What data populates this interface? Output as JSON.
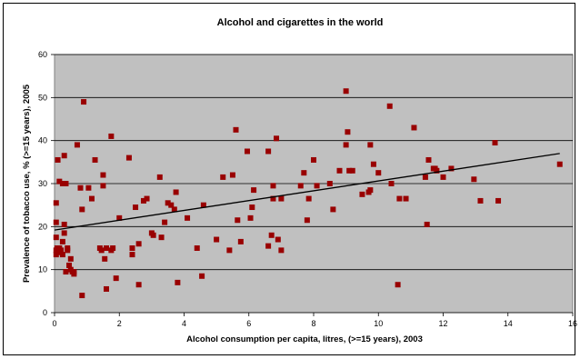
{
  "chart_data": {
    "type": "scatter",
    "title": "Alcohol and cigarettes in the world",
    "xlabel": "Alcohol consumption per capita, litres, (>=15 years), 2003",
    "ylabel": "Prevalence of tobacco use, % (>=15 years), 2005",
    "xlim": [
      0,
      16
    ],
    "ylim": [
      0,
      60
    ],
    "x_ticks": [
      "0",
      "2",
      "4",
      "6",
      "8",
      "10",
      "12",
      "14",
      "16"
    ],
    "y_ticks": [
      "0",
      "10",
      "20",
      "30",
      "40",
      "50",
      "60"
    ],
    "grid": "horizontal",
    "legend": "none",
    "marker_color": "#990000",
    "trendline": {
      "x": [
        0,
        15.6
      ],
      "y": [
        19.2,
        37.0
      ],
      "color": "#000000"
    },
    "plot_background": "#c0c0c0",
    "series": [
      {
        "x": [
          0.05,
          0.05,
          0.05,
          0.05,
          0.05,
          0.08,
          0.1,
          0.1,
          0.15,
          0.15,
          0.2,
          0.25,
          0.25,
          0.25,
          0.3,
          0.3,
          0.3,
          0.35,
          0.35,
          0.4,
          0.4,
          0.45,
          0.5,
          0.5,
          0.55,
          0.6,
          0.6,
          0.7,
          0.8,
          0.85,
          0.85,
          0.9,
          1.05,
          1.15,
          1.25,
          1.4,
          1.45,
          1.5,
          1.5,
          1.55,
          1.6,
          1.6,
          1.75,
          1.75,
          1.8,
          1.9,
          2.0,
          2.3,
          2.4,
          2.4,
          2.5,
          2.6,
          2.6,
          2.75,
          2.85,
          3.0,
          3.05,
          3.25,
          3.3,
          3.4,
          3.5,
          3.6,
          3.7,
          3.75,
          3.8,
          4.1,
          4.4,
          4.55,
          4.6,
          5.0,
          5.2,
          5.4,
          5.5,
          5.6,
          5.65,
          5.75,
          5.95,
          6.05,
          6.1,
          6.15,
          6.6,
          6.6,
          6.7,
          6.75,
          6.75,
          6.85,
          6.9,
          7.0,
          7.0,
          7.6,
          7.7,
          7.8,
          7.85,
          8.0,
          8.1,
          8.5,
          8.6,
          8.8,
          9.0,
          9.0,
          9.05,
          9.1,
          9.2,
          9.5,
          9.7,
          9.75,
          9.75,
          9.85,
          10.0,
          10.35,
          10.4,
          10.6,
          10.65,
          10.85,
          11.1,
          11.45,
          11.5,
          11.55,
          11.7,
          11.75,
          11.8,
          12.0,
          12.25,
          12.95,
          13.15,
          13.6,
          13.7,
          15.6
        ],
        "y": [
          13.5,
          25.5,
          14.5,
          17.5,
          21.0,
          15.0,
          35.5,
          14.0,
          30.5,
          15.0,
          14.5,
          30.0,
          16.5,
          13.5,
          18.5,
          36.5,
          20.5,
          9.5,
          30.0,
          14.5,
          15.0,
          11.0,
          10.0,
          12.5,
          9.5,
          9.0,
          9.5,
          39.0,
          29.0,
          24.0,
          4.0,
          49.0,
          29.0,
          26.5,
          35.5,
          15.0,
          14.5,
          32.0,
          29.5,
          12.5,
          5.5,
          15.0,
          41.0,
          14.5,
          15.0,
          8.0,
          22.0,
          36.0,
          13.5,
          15.0,
          24.5,
          6.5,
          16.0,
          26.0,
          26.5,
          18.5,
          18.0,
          31.5,
          17.5,
          21.0,
          25.5,
          25.0,
          24.0,
          28.0,
          7.0,
          22.0,
          15.0,
          8.5,
          25.0,
          17.0,
          31.5,
          14.5,
          32.0,
          42.5,
          21.5,
          16.5,
          37.5,
          22.0,
          24.5,
          28.5,
          15.5,
          37.5,
          18.0,
          29.5,
          26.5,
          40.5,
          17.0,
          26.5,
          14.5,
          29.5,
          32.5,
          21.5,
          26.5,
          35.5,
          29.5,
          30.0,
          24.0,
          33.0,
          39.0,
          51.5,
          42.0,
          33.0,
          33.0,
          27.5,
          28.0,
          28.5,
          39.0,
          34.5,
          32.5,
          48.0,
          30.0,
          6.5,
          26.5,
          26.5,
          43.0,
          31.5,
          20.5,
          35.5,
          33.5,
          33.5,
          33.0,
          31.5,
          33.5,
          31.0,
          26.0,
          39.5,
          26.0,
          34.5
        ]
      }
    ]
  }
}
